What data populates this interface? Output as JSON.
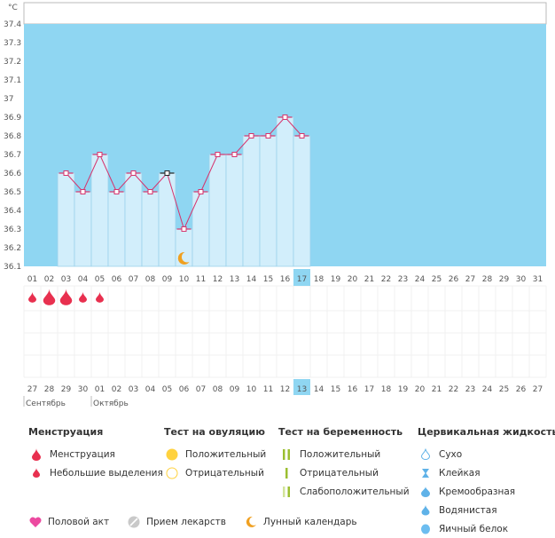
{
  "chart_data": {
    "type": "line",
    "ylabel": "°C",
    "ylim": [
      36.1,
      37.4
    ],
    "yticks": [
      "36.1",
      "36.2",
      "36.3",
      "36.4",
      "36.5",
      "36.6",
      "36.7",
      "36.8",
      "36.9",
      "37",
      "37.1",
      "37.2",
      "37.3",
      "37.4"
    ],
    "days": [
      "01",
      "02",
      "03",
      "04",
      "05",
      "06",
      "07",
      "08",
      "09",
      "10",
      "11",
      "12",
      "13",
      "14",
      "15",
      "16",
      "17",
      "18",
      "19",
      "20",
      "21",
      "22",
      "23",
      "24",
      "25",
      "26",
      "27",
      "28",
      "29",
      "30",
      "31"
    ],
    "dates": [
      "27",
      "28",
      "29",
      "30",
      "01",
      "02",
      "03",
      "04",
      "05",
      "06",
      "07",
      "08",
      "09",
      "10",
      "11",
      "12",
      "13",
      "14",
      "15",
      "16",
      "17",
      "18",
      "19",
      "20",
      "21",
      "22",
      "23",
      "24",
      "25",
      "26",
      "27"
    ],
    "date_colors": [
      "#e0315a",
      "#e0315a",
      "#555",
      "#555",
      "#555",
      "#555",
      "#555",
      "#e0315a",
      "#e0315a",
      "#555",
      "#555",
      "#555",
      "#555",
      "#555",
      "#e0315a",
      "#e0315a",
      "#555",
      "#555",
      "#555",
      "#555",
      "#555",
      "#e0315a",
      "#e0315a",
      "#555",
      "#555",
      "#555",
      "#555",
      "#555",
      "#e0315a",
      "#e0315a",
      "#555"
    ],
    "temperatures": [
      null,
      null,
      36.6,
      36.5,
      36.7,
      36.5,
      36.6,
      36.5,
      36.6,
      36.3,
      36.5,
      36.7,
      36.7,
      36.8,
      36.8,
      36.9,
      36.8
    ],
    "today_index": 16,
    "selected_point_index": 8,
    "moon_index": 9,
    "menstruation": [
      {
        "day_index": 0,
        "type": "small"
      },
      {
        "day_index": 1,
        "type": "full"
      },
      {
        "day_index": 2,
        "type": "full"
      },
      {
        "day_index": 3,
        "type": "small"
      },
      {
        "day_index": 4,
        "type": "small"
      }
    ],
    "months": [
      {
        "label": "Сентябрь",
        "start_index": 0
      },
      {
        "label": "Октябрь",
        "start_index": 4
      }
    ]
  },
  "colors": {
    "plot_bg": "#8fd6f2",
    "bar_fill": "#d2eefb",
    "bar_stroke": "#9bd2ec",
    "line": "#d6336c",
    "today_bg": "#8fd6f2",
    "drop": "#e8304f",
    "moon": "#f0a020"
  },
  "legend": {
    "menstruation": {
      "title": "Менструация",
      "items": [
        "Менструация",
        "Небольшие выделения"
      ]
    },
    "ovulation": {
      "title": "Тест на овуляцию",
      "items": [
        "Положительный",
        "Отрицательный"
      ]
    },
    "pregnancy": {
      "title": "Тест на беременность",
      "items": [
        "Положительный",
        "Отрицательный",
        "Слабоположительный"
      ]
    },
    "cervical": {
      "title": "Цервикальная жидкость",
      "items": [
        "Сухо",
        "Клейкая",
        "Кремообразная",
        "Водянистая",
        "Яичный белок"
      ]
    }
  },
  "bottom_legend": [
    "Половой акт",
    "Прием лекарств",
    "Лунный календарь"
  ]
}
